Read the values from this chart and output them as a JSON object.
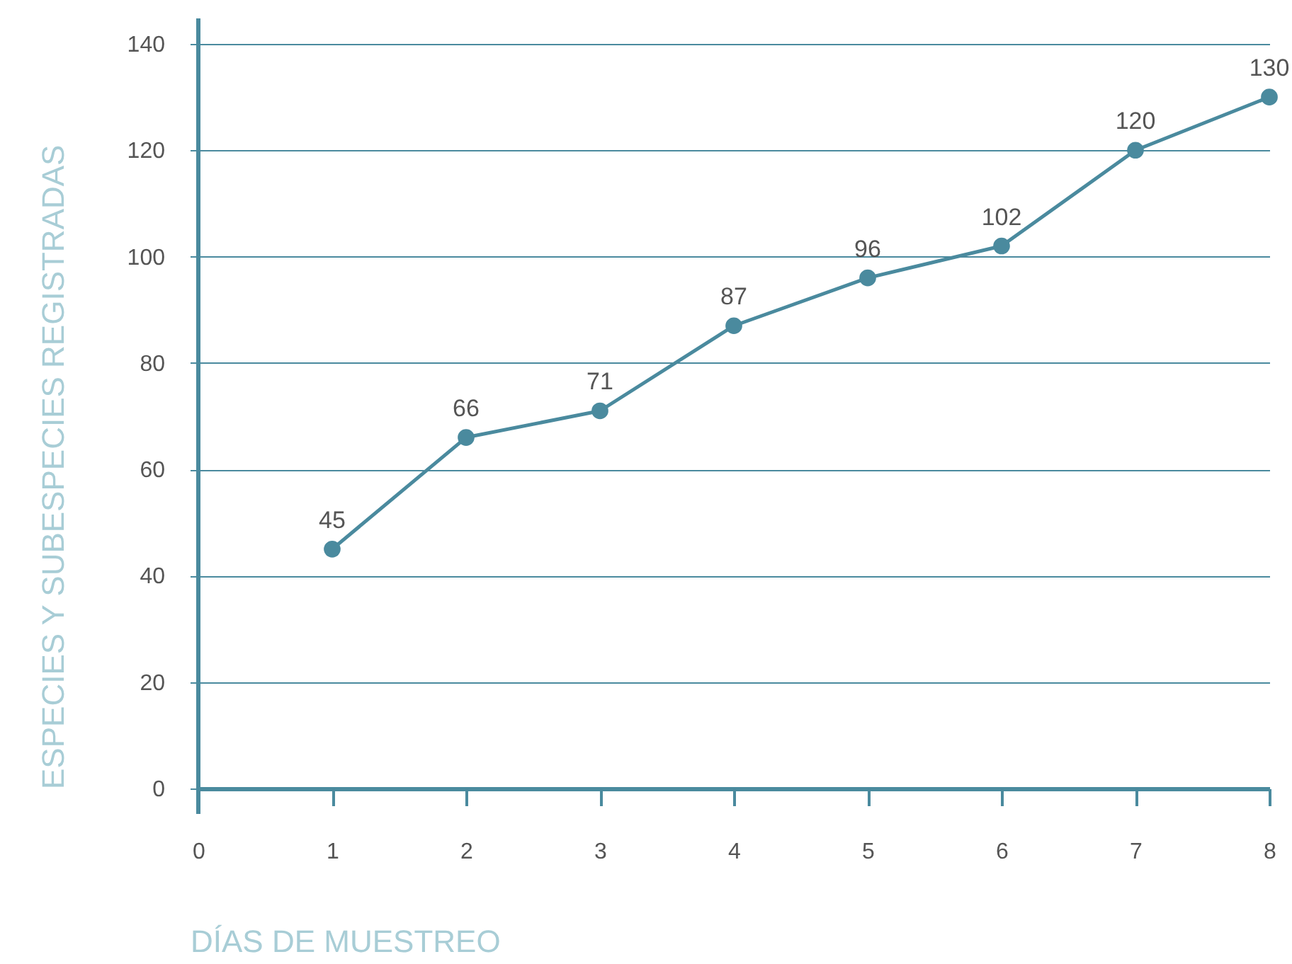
{
  "chart_data": {
    "type": "line",
    "xlabel": "DÍAS DE MUESTREO",
    "ylabel": "ESPECIES Y SUBESPECIES REGISTRADAS",
    "x": [
      1,
      2,
      3,
      4,
      5,
      6,
      7,
      8
    ],
    "series": [
      {
        "color": "#4a8a9e",
        "values": [
          45,
          66,
          71,
          87,
          96,
          102,
          120,
          130
        ]
      }
    ],
    "xlim": [
      0,
      8
    ],
    "xticks": [
      0,
      1,
      2,
      3,
      4,
      5,
      6,
      7,
      8
    ],
    "ylim": [
      0,
      140
    ],
    "yticks": [
      0,
      20,
      40,
      60,
      80,
      100,
      120,
      140
    ],
    "grid": "y",
    "marker": "circle",
    "line_style": "solid",
    "data_labels": true,
    "legend": false
  }
}
